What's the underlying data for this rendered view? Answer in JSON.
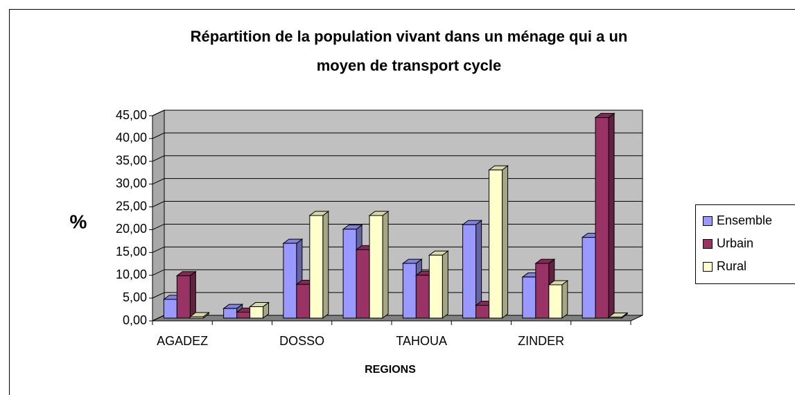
{
  "chart_data": {
    "type": "bar3d",
    "title": "Répartition de la population vivant dans un ménage qui a un",
    "subtitle": "moyen de transport cycle",
    "x_label": "REGIONS",
    "y_label": "%",
    "categories": [
      "AGADEZ",
      null,
      "DOSSO",
      null,
      "TAHOUA",
      null,
      "ZINDER",
      null
    ],
    "series": [
      {
        "name": "Ensemble",
        "color": "#9999ff",
        "values": [
          4.1,
          2.1,
          16.4,
          19.5,
          12.0,
          20.5,
          9.0,
          17.7
        ]
      },
      {
        "name": "Urbain",
        "color": "#993366",
        "values": [
          9.3,
          1.3,
          7.4,
          15.0,
          9.4,
          2.8,
          12.0,
          44.0
        ]
      },
      {
        "name": "Rural",
        "color": "#ffffcc",
        "values": [
          0.3,
          2.5,
          22.5,
          22.5,
          13.8,
          32.5,
          7.3,
          0.2
        ]
      }
    ],
    "ylim": [
      0,
      45
    ],
    "yticks": [
      {
        "value": 0,
        "label": "0,00"
      },
      {
        "value": 5,
        "label": "5,00"
      },
      {
        "value": 10,
        "label": "10,00"
      },
      {
        "value": 15,
        "label": "15,00"
      },
      {
        "value": 20,
        "label": "20,00"
      },
      {
        "value": 25,
        "label": "25,00"
      },
      {
        "value": 30,
        "label": "30,00"
      },
      {
        "value": 35,
        "label": "35,00"
      },
      {
        "value": 40,
        "label": "40,00"
      },
      {
        "value": 45,
        "label": "45,00"
      }
    ],
    "grid": true,
    "legend": "right"
  }
}
